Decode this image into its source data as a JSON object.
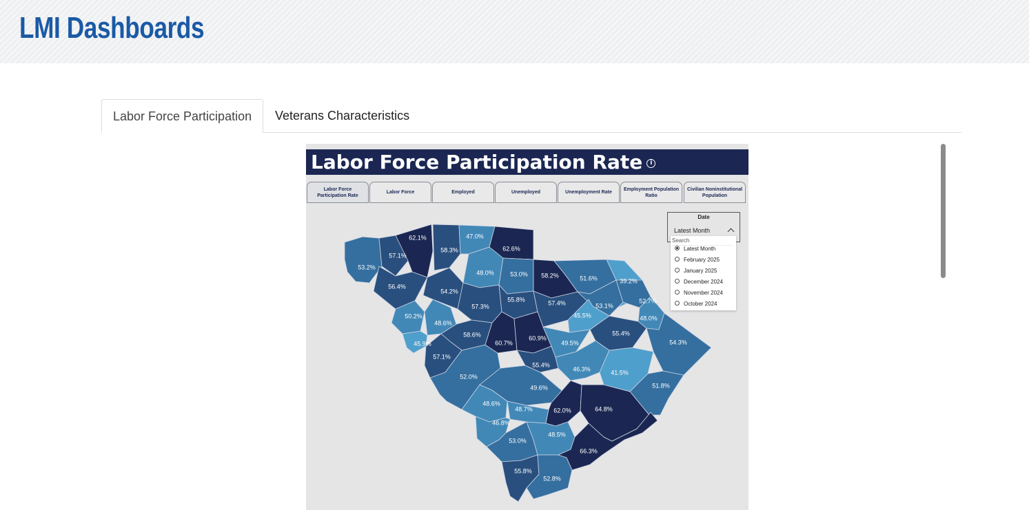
{
  "header": {
    "title": "LMI Dashboards"
  },
  "tabs": [
    {
      "label": "Labor Force Participation",
      "active": true
    },
    {
      "label": "Veterans Characteristics",
      "active": false
    }
  ],
  "report": {
    "title": "Labor Force Participation Rate",
    "info_icon": "info-icon",
    "metric_tabs": [
      {
        "label": "Labor Force Participation Rate",
        "selected": true
      },
      {
        "label": "Labor Force",
        "selected": false
      },
      {
        "label": "Employed",
        "selected": false
      },
      {
        "label": "Unemployed",
        "selected": false
      },
      {
        "label": "Unemployment Rate",
        "selected": false
      },
      {
        "label": "Employment Population Ratio",
        "selected": false
      },
      {
        "label": "Civilian Noninstitutional Population",
        "selected": false
      }
    ],
    "date_slicer": {
      "label": "Date",
      "value": "Latest Month",
      "search_placeholder": "Search",
      "options": [
        {
          "label": "Latest Month",
          "selected": true
        },
        {
          "label": "February 2025",
          "selected": false
        },
        {
          "label": "January 2025",
          "selected": false
        },
        {
          "label": "December 2024",
          "selected": false
        },
        {
          "label": "November 2024",
          "selected": false
        },
        {
          "label": "October 2024",
          "selected": false
        }
      ]
    },
    "map": {
      "colors": {
        "lightest": "#4f9fcc",
        "light": "#4188b7",
        "medium": "#346f9f",
        "dark": "#294f7e",
        "darkest": "#1b2752",
        "border": "#cfd5e3"
      },
      "counties": [
        {
          "value": "53.2%",
          "level": "medium"
        },
        {
          "value": "57.1%",
          "level": "dark"
        },
        {
          "value": "62.1%",
          "level": "darkest"
        },
        {
          "value": "58.3%",
          "level": "dark"
        },
        {
          "value": "47.0%",
          "level": "light"
        },
        {
          "value": "62.6%",
          "level": "darkest"
        },
        {
          "value": "56.4%",
          "level": "dark"
        },
        {
          "value": "48.0%",
          "level": "light"
        },
        {
          "value": "53.0%",
          "level": "medium"
        },
        {
          "value": "58.2%",
          "level": "darkest"
        },
        {
          "value": "51.6%",
          "level": "medium"
        },
        {
          "value": "39.2%",
          "level": "lightest"
        },
        {
          "value": "54.2%",
          "level": "dark"
        },
        {
          "value": "57.3%",
          "level": "dark"
        },
        {
          "value": "55.8%",
          "level": "dark"
        },
        {
          "value": "57.4%",
          "level": "dark"
        },
        {
          "value": "53.1%",
          "level": "medium"
        },
        {
          "value": "52.7%",
          "level": "medium"
        },
        {
          "value": "50.2%",
          "level": "light"
        },
        {
          "value": "48.6%",
          "level": "light"
        },
        {
          "value": "45.5%",
          "level": "lightest"
        },
        {
          "value": "48.0%",
          "level": "light"
        },
        {
          "value": "58.6%",
          "level": "dark"
        },
        {
          "value": "60.7%",
          "level": "darkest"
        },
        {
          "value": "60.9%",
          "level": "darkest"
        },
        {
          "value": "49.5%",
          "level": "light"
        },
        {
          "value": "55.4%",
          "level": "dark"
        },
        {
          "value": "54.3%",
          "level": "medium"
        },
        {
          "value": "45.9%",
          "level": "lightest"
        },
        {
          "value": "57.1%",
          "level": "dark"
        },
        {
          "value": "55.4%",
          "level": "dark"
        },
        {
          "value": "46.3%",
          "level": "light"
        },
        {
          "value": "41.5%",
          "level": "lightest"
        },
        {
          "value": "52.0%",
          "level": "medium"
        },
        {
          "value": "49.6%",
          "level": "medium"
        },
        {
          "value": "51.8%",
          "level": "medium"
        },
        {
          "value": "48.6%",
          "level": "light"
        },
        {
          "value": "48.7%",
          "level": "light"
        },
        {
          "value": "62.0%",
          "level": "darkest"
        },
        {
          "value": "64.8%",
          "level": "darkest"
        },
        {
          "value": "46.8%",
          "level": "light"
        },
        {
          "value": "53.0%",
          "level": "medium"
        },
        {
          "value": "48.5%",
          "level": "light"
        },
        {
          "value": "66.3%",
          "level": "darkest"
        },
        {
          "value": "55.8%",
          "level": "dark"
        },
        {
          "value": "52.8%",
          "level": "medium"
        }
      ]
    }
  }
}
